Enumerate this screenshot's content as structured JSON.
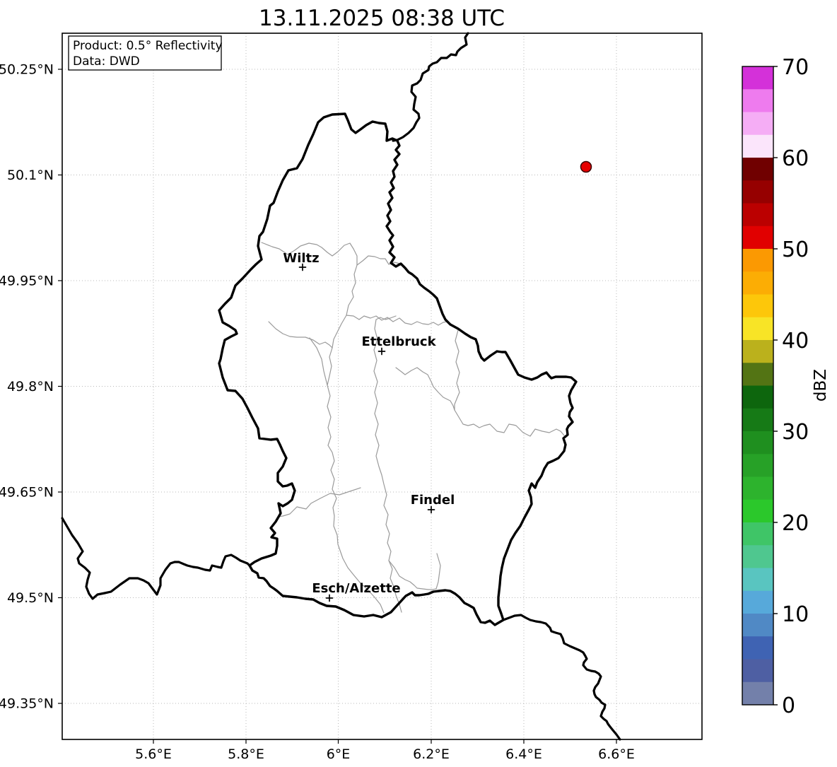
{
  "title": "13.11.2025 08:38 UTC",
  "info_box": {
    "line1": "Product: 0.5° Reflectivity",
    "line2": "Data: DWD"
  },
  "axes": {
    "x_ticks": [
      {
        "label": "5.6°E"
      },
      {
        "label": "5.8°E"
      },
      {
        "label": "6°E"
      },
      {
        "label": "6.2°E"
      },
      {
        "label": "6.4°E"
      },
      {
        "label": "6.6°E"
      }
    ],
    "y_ticks": [
      {
        "label": "50.25°N"
      },
      {
        "label": "50.1°N"
      },
      {
        "label": "49.95°N"
      },
      {
        "label": "49.8°N"
      },
      {
        "label": "49.65°N"
      },
      {
        "label": "49.5°N"
      },
      {
        "label": "49.35°N"
      }
    ]
  },
  "cities": [
    {
      "name": "Wiltz",
      "lon_approx": 5.92,
      "lat_approx": 49.97
    },
    {
      "name": "Ettelbruck",
      "lon_approx": 6.09,
      "lat_approx": 49.85
    },
    {
      "name": "Findel",
      "lon_approx": 6.2,
      "lat_approx": 49.63
    },
    {
      "name": "Esch/Alzette",
      "lon_approx": 5.98,
      "lat_approx": 49.5
    }
  ],
  "echo_point": {
    "color": "#E60000",
    "lon_approx": 6.53,
    "lat_approx": 50.11,
    "dbz_band_by_color": "50–52.5"
  },
  "colorbar": {
    "label": "dBZ",
    "ticks": [
      "70",
      "60",
      "50",
      "40",
      "30",
      "20",
      "10",
      "0"
    ],
    "segments": [
      {
        "from": 67.5,
        "to": 70.0,
        "color": "#D431D9"
      },
      {
        "from": 65.0,
        "to": 67.5,
        "color": "#EE7BEE"
      },
      {
        "from": 62.5,
        "to": 65.0,
        "color": "#F5ADF5"
      },
      {
        "from": 60.0,
        "to": 62.5,
        "color": "#FBE5FB"
      },
      {
        "from": 57.5,
        "to": 60.0,
        "color": "#700000"
      },
      {
        "from": 55.0,
        "to": 57.5,
        "color": "#960000"
      },
      {
        "from": 52.5,
        "to": 55.0,
        "color": "#BB0000"
      },
      {
        "from": 50.0,
        "to": 52.5,
        "color": "#E10000"
      },
      {
        "from": 47.5,
        "to": 50.0,
        "color": "#FB9902"
      },
      {
        "from": 45.0,
        "to": 47.5,
        "color": "#FCAD04"
      },
      {
        "from": 42.5,
        "to": 45.0,
        "color": "#FDC70A"
      },
      {
        "from": 40.0,
        "to": 42.5,
        "color": "#F8E426"
      },
      {
        "from": 37.5,
        "to": 40.0,
        "color": "#BBB11C"
      },
      {
        "from": 35.0,
        "to": 37.5,
        "color": "#537414"
      },
      {
        "from": 32.5,
        "to": 35.0,
        "color": "#0D660D"
      },
      {
        "from": 30.0,
        "to": 32.5,
        "color": "#167A16"
      },
      {
        "from": 27.5,
        "to": 30.0,
        "color": "#1F8F1F"
      },
      {
        "from": 25.0,
        "to": 27.5,
        "color": "#27A127"
      },
      {
        "from": 22.5,
        "to": 25.0,
        "color": "#2DB32D"
      },
      {
        "from": 20.0,
        "to": 22.5,
        "color": "#2BC82B"
      },
      {
        "from": 17.5,
        "to": 20.0,
        "color": "#3FC567"
      },
      {
        "from": 15.0,
        "to": 17.5,
        "color": "#4FC78F"
      },
      {
        "from": 12.5,
        "to": 15.0,
        "color": "#59C5C0"
      },
      {
        "from": 10.0,
        "to": 12.5,
        "color": "#57A9DA"
      },
      {
        "from": 7.5,
        "to": 10.0,
        "color": "#5089C5"
      },
      {
        "from": 5.0,
        "to": 7.5,
        "color": "#3F63B3"
      },
      {
        "from": 2.5,
        "to": 5.0,
        "color": "#4E5FA3"
      },
      {
        "from": 0.0,
        "to": 2.5,
        "color": "#7380AA"
      }
    ]
  },
  "chart_data": {
    "type": "scatter",
    "title": "13.11.2025 08:38 UTC",
    "points": [
      {
        "lon": 6.53,
        "lat": 50.11,
        "color": "#E10000",
        "dbz_band_by_color": "50–52.5"
      }
    ],
    "x_axis": {
      "ticks": [
        5.6,
        5.8,
        6.0,
        6.2,
        6.4,
        6.6
      ],
      "range": [
        5.4,
        6.79
      ],
      "unit": "°E"
    },
    "y_axis": {
      "ticks": [
        50.25,
        50.1,
        49.95,
        49.8,
        49.65,
        49.5,
        49.35
      ],
      "range": [
        49.3,
        50.3
      ],
      "unit": "°N"
    },
    "grid": "dotted",
    "colorbar_range": [
      0,
      70
    ],
    "colorbar_step": 2.5,
    "colorbar_label": "dBZ"
  }
}
